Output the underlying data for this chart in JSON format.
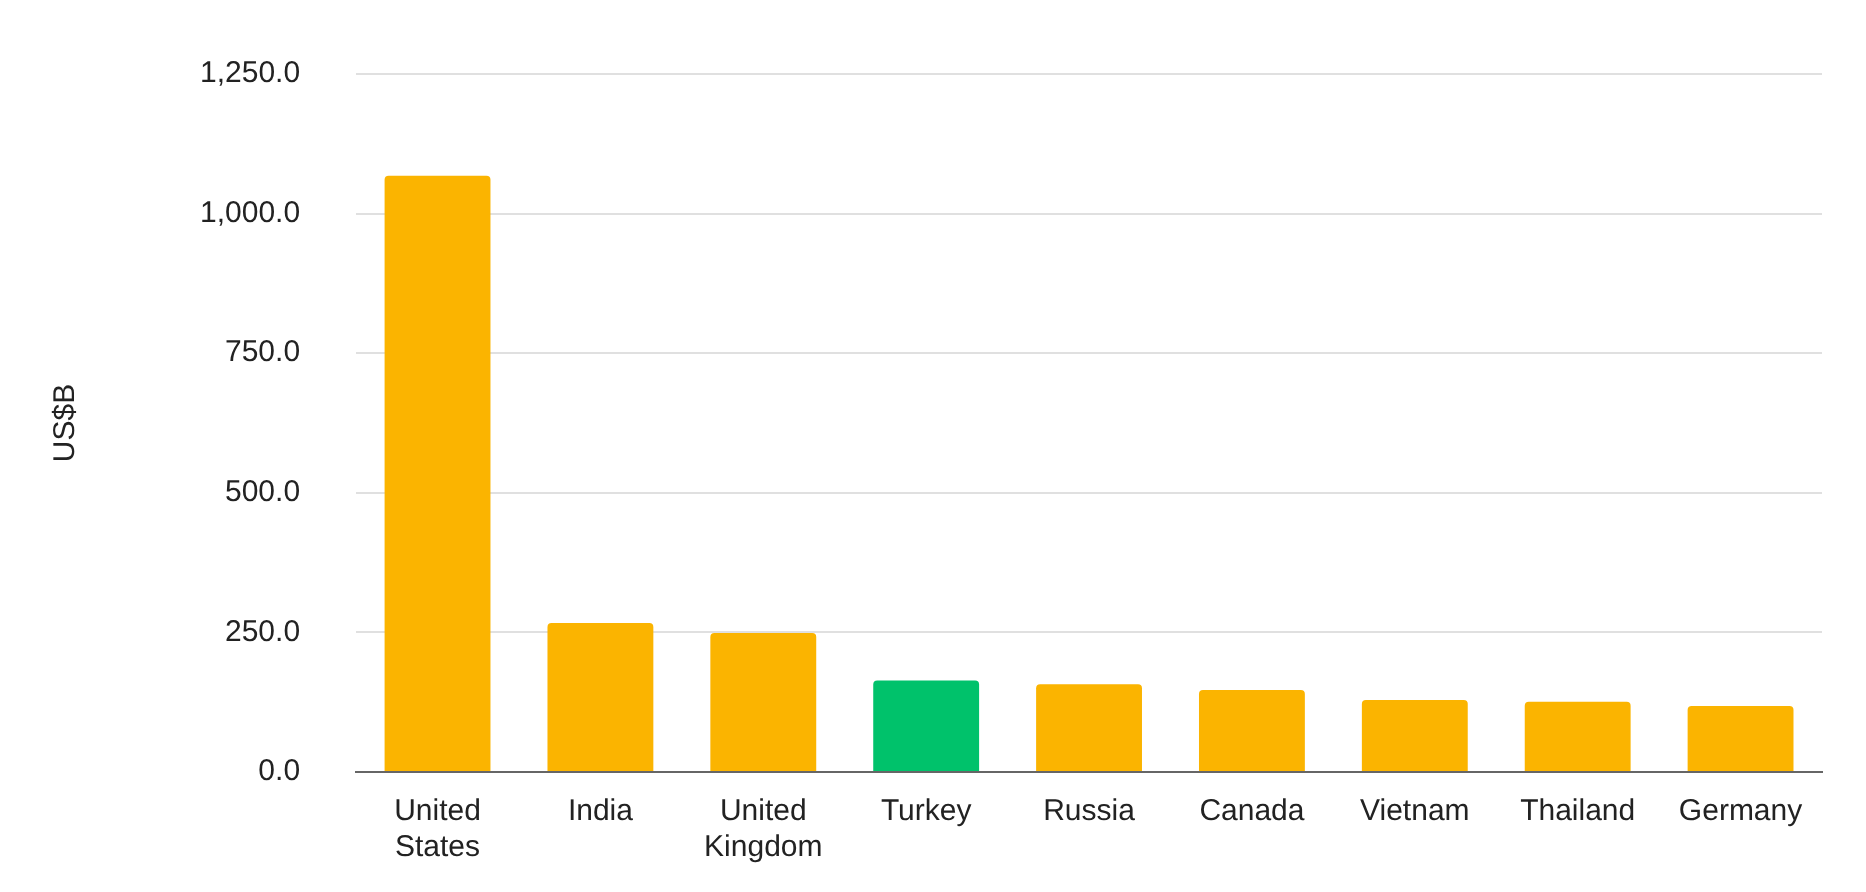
{
  "chart_data": {
    "type": "bar",
    "ylabel": "US$B",
    "categories": [
      "United States",
      "India",
      "United Kingdom",
      "Turkey",
      "Russia",
      "Canada",
      "Vietnam",
      "Thailand",
      "Germany"
    ],
    "values": [
      1068,
      267,
      249,
      164,
      157,
      147,
      129,
      126,
      118
    ],
    "colors": [
      "#fbb400",
      "#fbb400",
      "#fbb400",
      "#00c26b",
      "#fbb400",
      "#fbb400",
      "#fbb400",
      "#fbb400",
      "#fbb400"
    ],
    "ylim": [
      0,
      1250
    ],
    "yticks": [
      {
        "value": 0,
        "label": "0.0"
      },
      {
        "value": 250,
        "label": "250.0"
      },
      {
        "value": 500,
        "label": "500.0"
      },
      {
        "value": 750,
        "label": "750.0"
      },
      {
        "value": 1000,
        "label": "1,000.0"
      },
      {
        "value": 1250,
        "label": "1,250.0"
      }
    ],
    "grid": "y"
  }
}
